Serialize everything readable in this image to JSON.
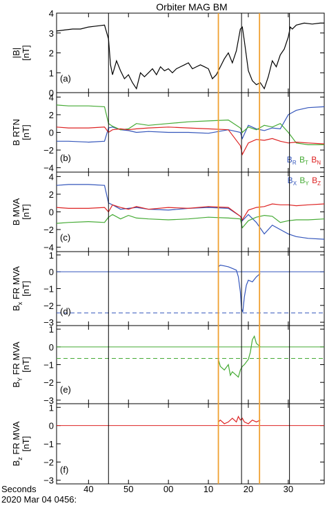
{
  "title": "Orbiter MAG BM",
  "footer": {
    "seconds_label": "Seconds",
    "date_label": "2020 Mar 04 0456:"
  },
  "colors": {
    "black": "#000000",
    "blue": "#3355bb",
    "green": "#44aa33",
    "red": "#dd2222",
    "orange": "#f0a030",
    "axis": "#000000"
  },
  "chart_data": [
    {
      "id": "a",
      "type": "line",
      "panel_label": "(a)",
      "ylabel_lines": [
        "|B|",
        "[nT]"
      ],
      "ylim": [
        0,
        4
      ],
      "yticks": [
        0,
        1,
        2,
        3,
        4
      ],
      "series": [
        {
          "color": "#000000",
          "x": [
            32,
            34,
            36,
            38,
            40,
            42,
            44,
            45.0,
            45.5,
            46,
            47,
            48,
            49,
            50,
            51,
            52,
            53,
            54,
            55,
            56,
            57,
            58,
            59,
            60,
            61,
            62,
            63,
            64,
            65,
            66,
            67,
            68,
            69,
            70,
            71,
            72,
            73,
            74,
            75,
            76,
            77,
            78,
            78.5,
            79,
            80,
            81,
            82,
            83,
            84,
            85,
            86,
            87,
            88,
            89,
            90,
            90.5,
            91,
            92,
            94,
            96,
            98,
            99
          ],
          "y": [
            3.1,
            3.15,
            3.2,
            3.2,
            3.3,
            3.35,
            3.4,
            2.7,
            1.4,
            0.9,
            1.6,
            1.1,
            0.7,
            0.9,
            0.5,
            0.2,
            1.0,
            0.8,
            1.0,
            1.2,
            0.9,
            1.3,
            1.1,
            1.2,
            1.0,
            1.2,
            1.3,
            1.4,
            1.5,
            1.2,
            1.3,
            1.4,
            1.3,
            1.2,
            0.7,
            0.9,
            1.3,
            1.7,
            2.0,
            1.5,
            2.1,
            3.2,
            3.3,
            2.6,
            1.1,
            0.6,
            0.4,
            0.5,
            0.2,
            0.8,
            1.6,
            1.3,
            1.9,
            2.2,
            2.8,
            3.3,
            3.2,
            3.4,
            3.5,
            3.45,
            3.5,
            3.5
          ]
        }
      ]
    },
    {
      "id": "b",
      "type": "line",
      "panel_label": "(b)",
      "ylabel_lines": [
        "B RTN",
        "[nT]"
      ],
      "ylim": [
        -4.5,
        4.5
      ],
      "yticks": [
        -4,
        -2,
        0,
        2,
        4
      ],
      "legend": [
        {
          "base": "B",
          "sub": "R",
          "color": "#3355bb"
        },
        {
          "base": "B",
          "sub": "T",
          "color": "#44aa33"
        },
        {
          "base": "B",
          "sub": "N",
          "color": "#dd2222"
        }
      ],
      "series": [
        {
          "color": "#3355bb",
          "x": [
            32,
            35,
            40,
            44,
            45,
            46,
            48,
            50,
            52,
            55,
            60,
            65,
            70,
            75,
            78,
            78.5,
            80,
            82,
            84,
            86,
            88,
            90,
            92,
            95,
            99
          ],
          "y": [
            -1.0,
            -1.0,
            -1.1,
            -1.0,
            0.5,
            0.6,
            0.3,
            0.2,
            0.0,
            0.1,
            0.0,
            0.0,
            -0.1,
            0.3,
            0.0,
            -0.7,
            0.8,
            0.4,
            0.2,
            0.5,
            0.4,
            2.0,
            2.5,
            2.8,
            2.9
          ]
        },
        {
          "color": "#44aa33",
          "x": [
            32,
            35,
            40,
            44,
            45,
            46,
            48,
            50,
            52,
            55,
            60,
            65,
            70,
            75,
            78,
            78.5,
            80,
            82,
            84,
            86,
            88,
            90,
            92,
            95,
            99
          ],
          "y": [
            3.1,
            3.0,
            3.0,
            2.9,
            1.0,
            0.7,
            0.3,
            0.4,
            1.0,
            0.8,
            1.0,
            1.2,
            1.3,
            1.4,
            0.5,
            0.0,
            0.6,
            0.3,
            0.8,
            0.6,
            1.0,
            0.0,
            -1.2,
            -1.4,
            -1.4
          ]
        },
        {
          "color": "#dd2222",
          "x": [
            32,
            35,
            40,
            44,
            45,
            46,
            48,
            50,
            52,
            55,
            60,
            65,
            70,
            75,
            78,
            78.5,
            80,
            82,
            84,
            86,
            88,
            90,
            92,
            95,
            99
          ],
          "y": [
            0.6,
            0.5,
            0.5,
            0.6,
            0.0,
            0.3,
            0.4,
            0.3,
            0.4,
            0.5,
            0.6,
            0.5,
            0.4,
            0.3,
            -1.5,
            -2.5,
            -1.2,
            -0.8,
            -0.9,
            -0.7,
            -1.0,
            -1.2,
            -1.1,
            -1.2,
            -1.3
          ]
        }
      ]
    },
    {
      "id": "c",
      "type": "line",
      "panel_label": "(c)",
      "ylabel_lines": [
        "B MVA",
        "[nT]"
      ],
      "ylim": [
        -4.5,
        4.5
      ],
      "yticks": [
        -4,
        -2,
        0,
        2,
        4
      ],
      "legend": [
        {
          "base": "B",
          "sub": "X",
          "color": "#3355bb"
        },
        {
          "base": "B",
          "sub": "Y",
          "color": "#44aa33"
        },
        {
          "base": "B",
          "sub": "Z",
          "color": "#dd2222"
        }
      ],
      "series": [
        {
          "color": "#3355bb",
          "x": [
            32,
            35,
            40,
            44,
            45,
            46,
            48,
            50,
            52,
            55,
            60,
            65,
            70,
            75,
            78,
            78.5,
            80,
            82,
            84,
            86,
            88,
            90,
            92,
            95,
            99
          ],
          "y": [
            3.0,
            3.1,
            3.1,
            3.0,
            1.0,
            0.8,
            0.3,
            0.4,
            0.5,
            0.3,
            0.2,
            0.4,
            0.5,
            0.4,
            -0.5,
            -1.0,
            -0.3,
            -1.2,
            -2.5,
            -1.5,
            -2.0,
            -2.5,
            -2.8,
            -3.0,
            -3.1
          ]
        },
        {
          "color": "#44aa33",
          "x": [
            32,
            35,
            40,
            44,
            45,
            46,
            48,
            50,
            52,
            55,
            60,
            65,
            70,
            75,
            78,
            78.5,
            80,
            82,
            84,
            86,
            88,
            90,
            92,
            95,
            99
          ],
          "y": [
            -1.3,
            -1.2,
            -1.1,
            -1.2,
            -0.6,
            -0.3,
            -0.8,
            -0.4,
            -0.7,
            -0.8,
            -0.9,
            -0.8,
            -0.6,
            -0.7,
            -0.8,
            -1.8,
            -1.0,
            -0.6,
            -0.4,
            -0.5,
            -1.2,
            -1.0,
            -0.9,
            -0.9,
            -0.8
          ]
        },
        {
          "color": "#dd2222",
          "x": [
            32,
            35,
            40,
            44,
            45,
            46,
            48,
            50,
            52,
            55,
            60,
            65,
            70,
            75,
            78,
            78.5,
            80,
            82,
            84,
            86,
            88,
            90,
            92,
            95,
            99
          ],
          "y": [
            0.5,
            0.4,
            0.4,
            0.5,
            0.0,
            0.8,
            0.5,
            0.3,
            0.6,
            0.3,
            0.5,
            0.4,
            0.6,
            0.5,
            -0.5,
            -0.9,
            0.2,
            0.5,
            0.6,
            0.9,
            0.8,
            0.8,
            0.7,
            0.8,
            0.9
          ]
        }
      ]
    },
    {
      "id": "d",
      "type": "line",
      "panel_label": "(d)",
      "ylabel_lines": [
        {
          "base": "B",
          "sub": "x",
          "tail": " FR MVA"
        },
        "[nT]"
      ],
      "ylim": [
        -3.2,
        1.2
      ],
      "yticks": [
        -3,
        -2,
        -1,
        0,
        1
      ],
      "hlines": [
        {
          "y": 0,
          "color": "#3355bb",
          "style": "solid"
        },
        {
          "y": -2.45,
          "color": "#3355bb",
          "style": "dashed"
        }
      ],
      "series": [
        {
          "color": "#3355bb",
          "x": [
            72.5,
            73,
            74,
            75,
            76,
            77,
            77.5,
            78,
            78.3,
            78.6,
            79,
            79.5,
            80,
            81,
            82,
            83
          ],
          "y": [
            0.3,
            0.4,
            0.35,
            0.3,
            0.2,
            0.1,
            -0.3,
            -1.2,
            -2.2,
            -2.4,
            -1.5,
            -0.8,
            -0.5,
            -0.6,
            -0.3,
            -0.1
          ]
        }
      ]
    },
    {
      "id": "e",
      "type": "line",
      "panel_label": "(e)",
      "ylabel_lines": [
        {
          "base": "B",
          "sub": "Y",
          "tail": " FR MVA"
        },
        "[nT]"
      ],
      "ylim": [
        -3.2,
        1.2
      ],
      "yticks": [
        -3,
        -2,
        -1,
        0,
        1
      ],
      "hlines": [
        {
          "y": 0,
          "color": "#44aa33",
          "style": "solid"
        },
        {
          "y": -0.65,
          "color": "#44aa33",
          "style": "dashed"
        }
      ],
      "series": [
        {
          "color": "#44aa33",
          "x": [
            72.5,
            73,
            74,
            75,
            75.5,
            76,
            77,
            77.5,
            78,
            78.5,
            79,
            80,
            80.5,
            81,
            81.5,
            82,
            83
          ],
          "y": [
            -0.7,
            -1.1,
            -1.3,
            -1.0,
            -1.6,
            -1.4,
            -1.6,
            -1.7,
            -1.3,
            -1.1,
            -1.0,
            -0.7,
            -0.3,
            0.4,
            0.6,
            0.2,
            0.0
          ]
        }
      ]
    },
    {
      "id": "f",
      "type": "line",
      "panel_label": "(f)",
      "ylabel_lines": [
        {
          "base": "B",
          "sub": "z",
          "tail": " FR MVA"
        },
        "[nT]"
      ],
      "ylim": [
        -3.2,
        1.2
      ],
      "yticks": [
        -3,
        -2,
        -1,
        0,
        1
      ],
      "hlines": [
        {
          "y": 0,
          "color": "#dd2222",
          "style": "solid"
        }
      ],
      "series": [
        {
          "color": "#dd2222",
          "x": [
            72.5,
            73,
            74,
            75,
            76,
            77,
            77.5,
            78,
            78.5,
            79,
            80,
            81,
            82,
            83
          ],
          "y": [
            0.2,
            0.3,
            0.1,
            0.2,
            0.4,
            0.2,
            0.5,
            0.3,
            0.4,
            0.2,
            0.1,
            0.3,
            0.2,
            0.3
          ]
        }
      ]
    }
  ],
  "x_axis": {
    "xlim": [
      32,
      99
    ],
    "ticks": [
      {
        "x": 40,
        "label": "40"
      },
      {
        "x": 50,
        "label": "50"
      },
      {
        "x": 60,
        "label": "00"
      },
      {
        "x": 70,
        "label": "10"
      },
      {
        "x": 80,
        "label": "20"
      },
      {
        "x": 90,
        "label": "30"
      }
    ],
    "vlines": [
      {
        "x": 45,
        "color": "#000000",
        "panels": [
          "a",
          "b",
          "c",
          "d",
          "e",
          "f"
        ]
      },
      {
        "x": 78.3,
        "color": "#000000",
        "panels": [
          "a",
          "b",
          "c",
          "d",
          "e",
          "f"
        ]
      },
      {
        "x": 90.3,
        "color": "#000000",
        "panels": [
          "a",
          "b",
          "c",
          "d",
          "e",
          "f"
        ]
      },
      {
        "x": 72.5,
        "color": "#f0a030",
        "panels": [
          "a",
          "b",
          "c",
          "d",
          "e",
          "f"
        ]
      },
      {
        "x": 82.8,
        "color": "#f0a030",
        "panels": [
          "a",
          "b",
          "c",
          "d",
          "e",
          "f"
        ]
      }
    ]
  }
}
